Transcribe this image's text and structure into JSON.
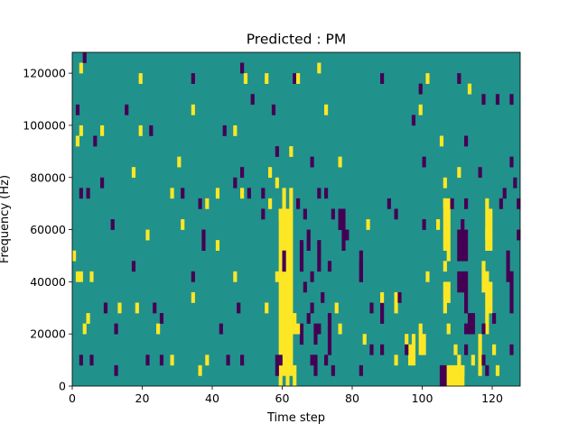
{
  "chart_data": {
    "type": "heatmap",
    "title": "Predicted : PM",
    "xlabel": "Time step",
    "ylabel": "Frequency (Hz)",
    "xlim": [
      0,
      128
    ],
    "ylim": [
      0,
      128000
    ],
    "x_ticks": [
      0,
      20,
      40,
      60,
      80,
      100,
      120
    ],
    "x_tick_labels": [
      "0",
      "20",
      "40",
      "60",
      "80",
      "100",
      "120"
    ],
    "y_ticks": [
      0,
      20000,
      40000,
      60000,
      80000,
      100000,
      120000
    ],
    "y_tick_labels": [
      "0",
      "20000",
      "40000",
      "60000",
      "80000",
      "100000",
      "120000"
    ],
    "colormap": "viridis",
    "value_colors": {
      "-1": "#440154",
      "0": "#21918c",
      "1": "#fde725"
    },
    "background_value": 0,
    "cell_height_hz": 4000,
    "cells": [
      {
        "t": 3,
        "f": 124000,
        "v": -1
      },
      {
        "t": 2,
        "f": 120000,
        "v": 1
      },
      {
        "t": 19,
        "f": 116000,
        "v": 1
      },
      {
        "t": 34,
        "f": 116000,
        "v": -1
      },
      {
        "t": 48,
        "f": 120000,
        "v": -1
      },
      {
        "t": 49,
        "f": 116000,
        "v": 1
      },
      {
        "t": 55,
        "f": 116000,
        "v": 1
      },
      {
        "t": 63,
        "f": 116000,
        "v": -1
      },
      {
        "t": 64,
        "f": 116000,
        "v": 1
      },
      {
        "t": 70,
        "f": 120000,
        "v": 1
      },
      {
        "t": 88,
        "f": 116000,
        "v": -1
      },
      {
        "t": 99,
        "f": 112000,
        "v": -1
      },
      {
        "t": 101,
        "f": 116000,
        "v": 1
      },
      {
        "t": 110,
        "f": 116000,
        "v": -1
      },
      {
        "t": 1,
        "f": 104000,
        "v": -1
      },
      {
        "t": 15,
        "f": 104000,
        "v": -1
      },
      {
        "t": 34,
        "f": 104000,
        "v": 1
      },
      {
        "t": 51,
        "f": 108000,
        "v": -1
      },
      {
        "t": 57,
        "f": 104000,
        "v": -1
      },
      {
        "t": 72,
        "f": 104000,
        "v": 1
      },
      {
        "t": 97,
        "f": 100000,
        "v": -1
      },
      {
        "t": 99,
        "f": 104000,
        "v": 1
      },
      {
        "t": 113,
        "f": 112000,
        "v": 1
      },
      {
        "t": 117,
        "f": 108000,
        "v": -1
      },
      {
        "t": 121,
        "f": 108000,
        "v": -1
      },
      {
        "t": 125,
        "f": 108000,
        "v": -1
      },
      {
        "t": 2,
        "f": 96000,
        "v": 1
      },
      {
        "t": 1,
        "f": 92000,
        "v": 1
      },
      {
        "t": 6,
        "f": 92000,
        "v": -1
      },
      {
        "t": 8,
        "f": 96000,
        "v": 1
      },
      {
        "t": 19,
        "f": 96000,
        "v": 1
      },
      {
        "t": 22,
        "f": 96000,
        "v": -1
      },
      {
        "t": 43,
        "f": 96000,
        "v": -1
      },
      {
        "t": 46,
        "f": 96000,
        "v": 1
      },
      {
        "t": 58,
        "f": 88000,
        "v": -1
      },
      {
        "t": 62,
        "f": 88000,
        "v": 1
      },
      {
        "t": 105,
        "f": 92000,
        "v": 1
      },
      {
        "t": 112,
        "f": 92000,
        "v": -1
      },
      {
        "t": 125,
        "f": 84000,
        "v": -1
      },
      {
        "t": 17,
        "f": 80000,
        "v": 1
      },
      {
        "t": 30,
        "f": 84000,
        "v": 1
      },
      {
        "t": 8,
        "f": 76000,
        "v": -1
      },
      {
        "t": 46,
        "f": 76000,
        "v": -1
      },
      {
        "t": 48,
        "f": 80000,
        "v": -1
      },
      {
        "t": 56,
        "f": 80000,
        "v": 1
      },
      {
        "t": 58,
        "f": 76000,
        "v": 1
      },
      {
        "t": 68,
        "f": 84000,
        "v": -1
      },
      {
        "t": 76,
        "f": 84000,
        "v": 1
      },
      {
        "t": 100,
        "f": 84000,
        "v": -1
      },
      {
        "t": 106,
        "f": 76000,
        "v": 1
      },
      {
        "t": 110,
        "f": 80000,
        "v": 1
      },
      {
        "t": 116,
        "f": 80000,
        "v": -1
      },
      {
        "t": 126,
        "f": 76000,
        "v": -1
      },
      {
        "t": 2,
        "f": 72000,
        "v": -1
      },
      {
        "t": 4,
        "f": 72000,
        "v": -1
      },
      {
        "t": 28,
        "f": 72000,
        "v": 1
      },
      {
        "t": 31,
        "f": 72000,
        "v": -1
      },
      {
        "t": 36,
        "f": 68000,
        "v": -1
      },
      {
        "t": 38,
        "f": 68000,
        "v": 1
      },
      {
        "t": 41,
        "f": 72000,
        "v": 1
      },
      {
        "t": 48,
        "f": 72000,
        "v": 1
      },
      {
        "t": 50,
        "f": 72000,
        "v": -1
      },
      {
        "t": 54,
        "f": 72000,
        "v": -1
      },
      {
        "t": 56,
        "f": 68000,
        "v": 1
      },
      {
        "t": 54,
        "f": 64000,
        "v": -1
      },
      {
        "t": 59,
        "f": 64000,
        "v": 1
      },
      {
        "t": 61,
        "f": 64000,
        "v": 1
      },
      {
        "t": 64,
        "f": 68000,
        "v": -1
      },
      {
        "t": 70,
        "f": 72000,
        "v": -1
      },
      {
        "t": 72,
        "f": 72000,
        "v": -1
      },
      {
        "t": 66,
        "f": 64000,
        "v": -1
      },
      {
        "t": 74,
        "f": 64000,
        "v": -1
      },
      {
        "t": 90,
        "f": 68000,
        "v": -1
      },
      {
        "t": 92,
        "f": 64000,
        "v": -1
      },
      {
        "t": 106,
        "f": 68000,
        "v": 1
      },
      {
        "t": 108,
        "f": 68000,
        "v": -1
      },
      {
        "t": 112,
        "f": 68000,
        "v": -1
      },
      {
        "t": 118,
        "f": 68000,
        "v": 1
      },
      {
        "t": 122,
        "f": 68000,
        "v": -1
      },
      {
        "t": 123,
        "f": 72000,
        "v": -1
      },
      {
        "t": 127,
        "f": 68000,
        "v": -1
      },
      {
        "t": 11,
        "f": 60000,
        "v": -1
      },
      {
        "t": 31,
        "f": 60000,
        "v": 1
      },
      {
        "t": 37,
        "f": 56000,
        "v": -1
      },
      {
        "t": 21,
        "f": 56000,
        "v": 1
      },
      {
        "t": 41,
        "f": 52000,
        "v": 1
      },
      {
        "t": 37,
        "f": 52000,
        "v": -1
      },
      {
        "t": 76,
        "f": 60000,
        "v": -1
      },
      {
        "t": 78,
        "f": 56000,
        "v": -1
      },
      {
        "t": 84,
        "f": 60000,
        "v": 1
      },
      {
        "t": 100,
        "f": 60000,
        "v": -1
      },
      {
        "t": 104,
        "f": 60000,
        "v": 1
      },
      {
        "t": 111,
        "f": 60000,
        "v": -1
      },
      {
        "t": 118,
        "f": 56000,
        "v": 1
      },
      {
        "t": 127,
        "f": 56000,
        "v": -1
      },
      {
        "t": 0,
        "f": 48000,
        "v": 1
      },
      {
        "t": 17,
        "f": 44000,
        "v": -1
      },
      {
        "t": 1,
        "f": 40000,
        "v": 1
      },
      {
        "t": 2,
        "f": 40000,
        "v": 1
      },
      {
        "t": 5,
        "f": 40000,
        "v": 1
      },
      {
        "t": 34,
        "f": 40000,
        "v": -1
      },
      {
        "t": 46,
        "f": 40000,
        "v": 1
      },
      {
        "t": 58,
        "f": 40000,
        "v": 1
      },
      {
        "t": 68,
        "f": 40000,
        "v": -1
      },
      {
        "t": 66,
        "f": 36000,
        "v": -1
      },
      {
        "t": 73,
        "f": 44000,
        "v": -1
      },
      {
        "t": 82,
        "f": 40000,
        "v": -1
      },
      {
        "t": 101,
        "f": 40000,
        "v": 1
      },
      {
        "t": 106,
        "f": 44000,
        "v": 1
      },
      {
        "t": 118,
        "f": 40000,
        "v": 1
      },
      {
        "t": 125,
        "f": 40000,
        "v": -1
      },
      {
        "t": 34,
        "f": 32000,
        "v": 1
      },
      {
        "t": 88,
        "f": 32000,
        "v": 1
      },
      {
        "t": 93,
        "f": 32000,
        "v": -1
      },
      {
        "t": 71,
        "f": 32000,
        "v": -1
      },
      {
        "t": 68,
        "f": 28000,
        "v": -1
      },
      {
        "t": 75,
        "f": 28000,
        "v": 1
      },
      {
        "t": 85,
        "f": 28000,
        "v": -1
      },
      {
        "t": 9,
        "f": 28000,
        "v": -1
      },
      {
        "t": 13,
        "f": 28000,
        "v": 1
      },
      {
        "t": 18,
        "f": 28000,
        "v": 1
      },
      {
        "t": 23,
        "f": 28000,
        "v": -1
      },
      {
        "t": 47,
        "f": 28000,
        "v": -1
      },
      {
        "t": 55,
        "f": 28000,
        "v": 1
      },
      {
        "t": 4,
        "f": 24000,
        "v": 1
      },
      {
        "t": 3,
        "f": 20000,
        "v": 1
      },
      {
        "t": 12,
        "f": 20000,
        "v": -1
      },
      {
        "t": 25,
        "f": 24000,
        "v": -1
      },
      {
        "t": 24,
        "f": 20000,
        "v": 1
      },
      {
        "t": 42,
        "f": 20000,
        "v": -1
      },
      {
        "t": 67,
        "f": 24000,
        "v": -1
      },
      {
        "t": 64,
        "f": 20000,
        "v": 1
      },
      {
        "t": 70,
        "f": 20000,
        "v": -1
      },
      {
        "t": 76,
        "f": 20000,
        "v": 1
      },
      {
        "t": 107,
        "f": 20000,
        "v": 1
      },
      {
        "t": 112,
        "f": 20000,
        "v": -1
      },
      {
        "t": 117,
        "f": 20000,
        "v": -1
      },
      {
        "t": 120,
        "f": 24000,
        "v": -1
      },
      {
        "t": 83,
        "f": 16000,
        "v": 1
      },
      {
        "t": 85,
        "f": 12000,
        "v": -1
      },
      {
        "t": 88,
        "f": 12000,
        "v": -1
      },
      {
        "t": 95,
        "f": 16000,
        "v": 1
      },
      {
        "t": 2,
        "f": 8000,
        "v": -1
      },
      {
        "t": 5,
        "f": 8000,
        "v": -1
      },
      {
        "t": 12,
        "f": 4000,
        "v": -1
      },
      {
        "t": 21,
        "f": 8000,
        "v": -1
      },
      {
        "t": 25,
        "f": 8000,
        "v": -1
      },
      {
        "t": 28,
        "f": 8000,
        "v": 1
      },
      {
        "t": 38,
        "f": 8000,
        "v": 1
      },
      {
        "t": 36,
        "f": 4000,
        "v": 1
      },
      {
        "t": 44,
        "f": 8000,
        "v": -1
      },
      {
        "t": 48,
        "f": 8000,
        "v": -1
      },
      {
        "t": 59,
        "f": 8000,
        "v": -1
      },
      {
        "t": 68,
        "f": 8000,
        "v": -1
      },
      {
        "t": 72,
        "f": 8000,
        "v": -1
      },
      {
        "t": 74,
        "f": 4000,
        "v": -1
      },
      {
        "t": 82,
        "f": 4000,
        "v": -1
      },
      {
        "t": 92,
        "f": 8000,
        "v": 1
      },
      {
        "t": 95,
        "f": 12000,
        "v": -1
      },
      {
        "t": 97,
        "f": 8000,
        "v": 1
      },
      {
        "t": 109,
        "f": 12000,
        "v": 1
      },
      {
        "t": 112,
        "f": 12000,
        "v": -1
      },
      {
        "t": 114,
        "f": 8000,
        "v": 1
      },
      {
        "t": 117,
        "f": 8000,
        "v": -1
      },
      {
        "t": 120,
        "f": 12000,
        "v": 1
      },
      {
        "t": 125,
        "f": 12000,
        "v": -1
      },
      {
        "t": 118,
        "f": 4000,
        "v": -1
      },
      {
        "t": 121,
        "f": 4000,
        "v": 1
      },
      {
        "t": 111,
        "f": 4000,
        "v": 1
      }
    ],
    "runs": [
      {
        "t": 59,
        "f_from": 4000,
        "f_to": 64000,
        "v": 1
      },
      {
        "t": 60,
        "f_from": 4000,
        "f_to": 72000,
        "v": 1
      },
      {
        "t": 61,
        "f_from": 0,
        "f_to": 60000,
        "v": 1
      },
      {
        "t": 62,
        "f_from": 4000,
        "f_to": 72000,
        "v": 1
      },
      {
        "t": 63,
        "f_from": 20000,
        "f_to": 24000,
        "v": 1
      },
      {
        "t": 59,
        "f_from": 0,
        "f_to": 4000,
        "v": 1
      },
      {
        "t": 63,
        "f_from": 0,
        "f_to": 4000,
        "v": 1
      },
      {
        "t": 105,
        "f_from": 0,
        "f_to": 4000,
        "v": -1
      },
      {
        "t": 106,
        "f_from": 0,
        "f_to": 4000,
        "v": -1
      },
      {
        "t": 107,
        "f_from": 0,
        "f_to": 4000,
        "v": 1
      },
      {
        "t": 108,
        "f_from": 0,
        "f_to": 4000,
        "v": 1
      },
      {
        "t": 109,
        "f_from": 0,
        "f_to": 4000,
        "v": 1
      },
      {
        "t": 110,
        "f_from": 0,
        "f_to": 8000,
        "v": 1
      },
      {
        "t": 111,
        "f_from": 0,
        "f_to": 4000,
        "v": 1
      },
      {
        "t": 106,
        "f_from": 52000,
        "f_to": 68000,
        "v": 1
      },
      {
        "t": 107,
        "f_from": 48000,
        "f_to": 68000,
        "v": 1
      },
      {
        "t": 110,
        "f_from": 36000,
        "f_to": 40000,
        "v": -1
      },
      {
        "t": 111,
        "f_from": 36000,
        "f_to": 40000,
        "v": -1
      },
      {
        "t": 112,
        "f_from": 28000,
        "f_to": 40000,
        "v": -1
      },
      {
        "t": 110,
        "f_from": 48000,
        "f_to": 56000,
        "v": -1
      },
      {
        "t": 111,
        "f_from": 48000,
        "f_to": 56000,
        "v": -1
      },
      {
        "t": 112,
        "f_from": 48000,
        "f_to": 56000,
        "v": -1
      },
      {
        "t": 106,
        "f_from": 28000,
        "f_to": 36000,
        "v": 1
      },
      {
        "t": 107,
        "f_from": 32000,
        "f_to": 36000,
        "v": 1
      },
      {
        "t": 119,
        "f_from": 28000,
        "f_to": 36000,
        "v": 1
      },
      {
        "t": 118,
        "f_from": 32000,
        "f_to": 40000,
        "v": 1
      },
      {
        "t": 113,
        "f_from": 20000,
        "f_to": 24000,
        "v": -1
      },
      {
        "t": 114,
        "f_from": 20000,
        "f_to": 24000,
        "v": -1
      },
      {
        "t": 118,
        "f_from": 20000,
        "f_to": 28000,
        "v": 1
      },
      {
        "t": 118,
        "f_from": 52000,
        "f_to": 64000,
        "v": 1
      },
      {
        "t": 119,
        "f_from": 52000,
        "f_to": 64000,
        "v": 1
      },
      {
        "t": 77,
        "f_from": 52000,
        "f_to": 64000,
        "v": -1
      },
      {
        "t": 76,
        "f_from": 60000,
        "f_to": 64000,
        "v": -1
      },
      {
        "t": 82,
        "f_from": 44000,
        "f_to": 48000,
        "v": -1
      },
      {
        "t": 82,
        "f_from": 40000,
        "f_to": 44000,
        "v": -1
      },
      {
        "t": 96,
        "f_from": 8000,
        "f_to": 12000,
        "v": 1
      },
      {
        "t": 97,
        "f_from": 12000,
        "f_to": 16000,
        "v": 1
      },
      {
        "t": 88,
        "f_from": 24000,
        "f_to": 28000,
        "v": -1
      },
      {
        "t": 92,
        "f_from": 28000,
        "f_to": 32000,
        "v": 1
      },
      {
        "t": 69,
        "f_from": 4000,
        "f_to": 8000,
        "v": -1
      },
      {
        "t": 73,
        "f_from": 12000,
        "f_to": 16000,
        "v": -1
      },
      {
        "t": 73,
        "f_from": 20000,
        "f_to": 24000,
        "v": -1
      },
      {
        "t": 69,
        "f_from": 16000,
        "f_to": 20000,
        "v": -1
      },
      {
        "t": 65,
        "f_from": 16000,
        "f_to": 20000,
        "v": -1
      },
      {
        "t": 58,
        "f_from": 4000,
        "f_to": 8000,
        "v": -1
      },
      {
        "t": 116,
        "f_from": 4000,
        "f_to": 16000,
        "v": 1
      },
      {
        "t": 125,
        "f_from": 28000,
        "f_to": 40000,
        "v": -1
      },
      {
        "t": 124,
        "f_from": 40000,
        "f_to": 48000,
        "v": -1
      },
      {
        "t": 117,
        "f_from": 36000,
        "f_to": 44000,
        "v": 1
      },
      {
        "t": 99,
        "f_from": 12000,
        "f_to": 20000,
        "v": 1
      },
      {
        "t": 100,
        "f_from": 12000,
        "f_to": 16000,
        "v": 1
      },
      {
        "t": 67,
        "f_from": 52000,
        "f_to": 56000,
        "v": -1
      },
      {
        "t": 70,
        "f_from": 44000,
        "f_to": 52000,
        "v": -1
      },
      {
        "t": 65,
        "f_from": 44000,
        "f_to": 52000,
        "v": -1
      },
      {
        "t": 60,
        "f_from": 44000,
        "f_to": 48000,
        "v": -1
      }
    ]
  }
}
